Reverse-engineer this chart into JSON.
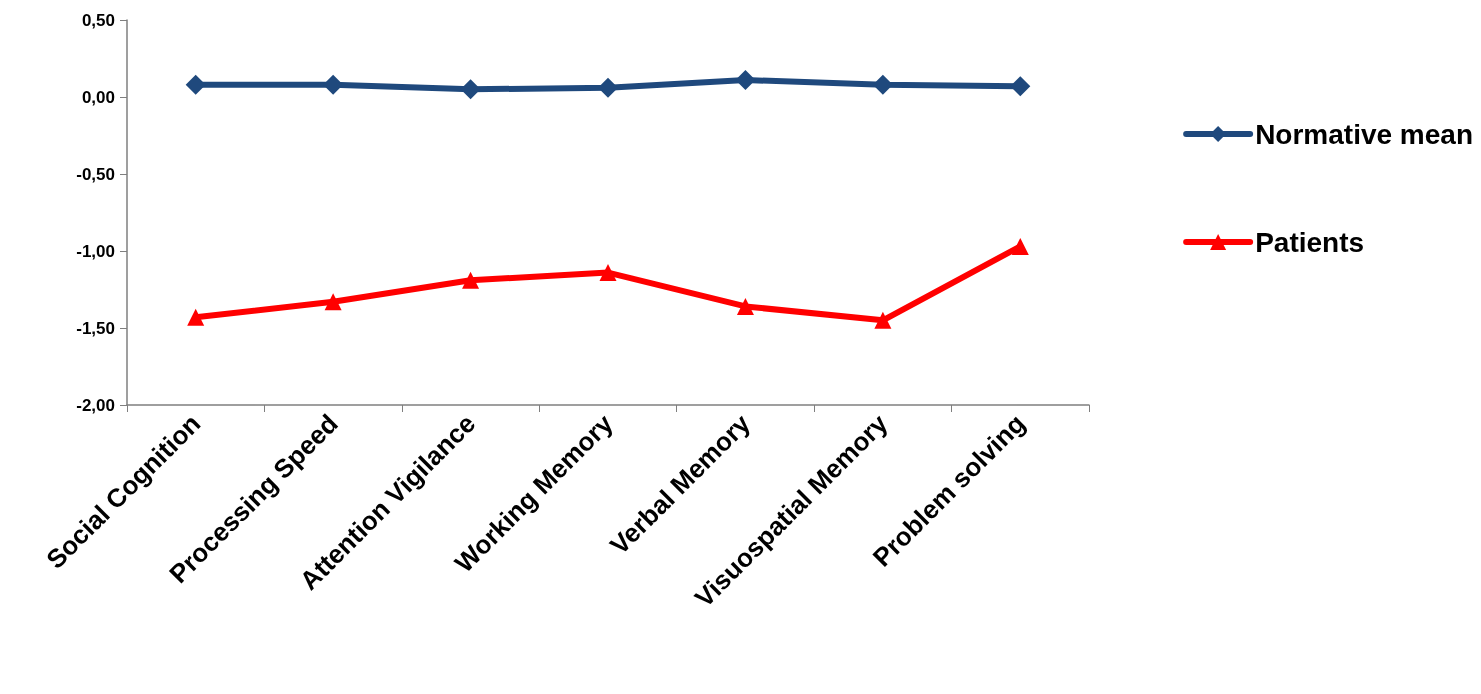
{
  "chart_data": {
    "type": "line",
    "categories": [
      "Social Cognition",
      "Processing Speed",
      "Attention Vigilance",
      "Working Memory",
      "Verbal Memory",
      "Visuospatial Memory",
      "Problem solving"
    ],
    "series": [
      {
        "name": "Normative mean",
        "color": "#1f497d",
        "marker": "diamond",
        "values": [
          0.08,
          0.08,
          0.05,
          0.06,
          0.11,
          0.08,
          0.07
        ]
      },
      {
        "name": "Patients",
        "color": "#ff0000",
        "marker": "triangle",
        "values": [
          -1.43,
          -1.33,
          -1.19,
          -1.14,
          -1.36,
          -1.45,
          -0.97
        ]
      }
    ],
    "ylim": [
      -2,
      0.5
    ],
    "yticks": [
      {
        "value": -2,
        "label": "-2,00"
      },
      {
        "value": -1.5,
        "label": "-1,50"
      },
      {
        "value": -1,
        "label": "-1,00"
      },
      {
        "value": -0.5,
        "label": "-0,50"
      },
      {
        "value": 0,
        "label": "0,00"
      },
      {
        "value": 0.5,
        "label": "0,50"
      }
    ],
    "grid": false,
    "legend": "right",
    "line_style": "solid"
  }
}
